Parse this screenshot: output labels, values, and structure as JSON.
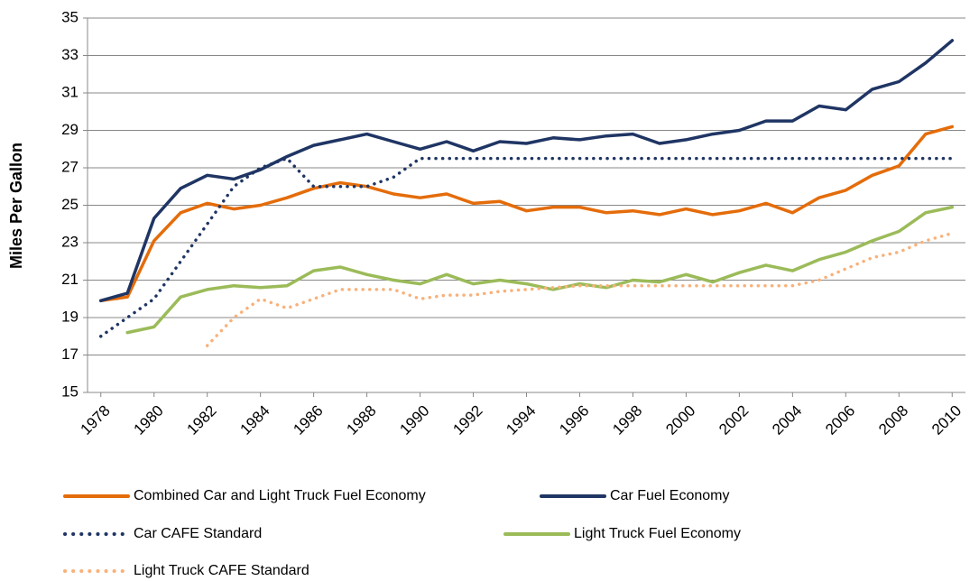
{
  "chart_data": {
    "type": "line",
    "y_label": "Miles Per Gallon",
    "x": [
      1978,
      1979,
      1980,
      1981,
      1982,
      1983,
      1984,
      1985,
      1986,
      1987,
      1988,
      1989,
      1990,
      1991,
      1992,
      1993,
      1994,
      1995,
      1996,
      1997,
      1998,
      1999,
      2000,
      2001,
      2002,
      2003,
      2004,
      2005,
      2006,
      2007,
      2008,
      2009,
      2010
    ],
    "xlim": [
      1977.5,
      2010.5
    ],
    "xticks": [
      1978,
      1980,
      1982,
      1984,
      1986,
      1988,
      1990,
      1992,
      1994,
      1996,
      1998,
      2000,
      2002,
      2004,
      2006,
      2008,
      2010
    ],
    "ylim": [
      15,
      35
    ],
    "yticks": [
      15,
      17,
      19,
      21,
      23,
      25,
      27,
      29,
      31,
      33,
      35
    ],
    "grid": true,
    "legend": "bottom",
    "series": [
      {
        "name": "Combined Car and Light Truck Fuel Economy",
        "color": "#e46c0a",
        "line_style": "solid",
        "values": [
          19.9,
          20.1,
          23.1,
          24.6,
          25.1,
          24.8,
          25.0,
          25.4,
          25.9,
          26.2,
          26.0,
          25.6,
          25.4,
          25.6,
          25.1,
          25.2,
          24.7,
          24.9,
          24.9,
          24.6,
          24.7,
          24.5,
          24.8,
          24.5,
          24.7,
          25.1,
          24.6,
          25.4,
          25.8,
          26.6,
          27.1,
          28.8,
          29.2
        ]
      },
      {
        "name": "Car Fuel Economy",
        "color": "#1f3564",
        "line_style": "solid",
        "values": [
          19.9,
          20.3,
          24.3,
          25.9,
          26.6,
          26.4,
          26.9,
          27.6,
          28.2,
          28.5,
          28.8,
          28.4,
          28.0,
          28.4,
          27.9,
          28.4,
          28.3,
          28.6,
          28.5,
          28.7,
          28.8,
          28.3,
          28.5,
          28.8,
          29.0,
          29.5,
          29.5,
          30.3,
          30.1,
          31.2,
          31.6,
          32.6,
          33.8
        ]
      },
      {
        "name": "Car CAFE Standard",
        "color": "#1f3564",
        "line_style": "dotted",
        "values": [
          18.0,
          19.0,
          20.0,
          22.0,
          24.0,
          26.0,
          27.0,
          27.5,
          26.0,
          26.0,
          26.0,
          26.5,
          27.5,
          27.5,
          27.5,
          27.5,
          27.5,
          27.5,
          27.5,
          27.5,
          27.5,
          27.5,
          27.5,
          27.5,
          27.5,
          27.5,
          27.5,
          27.5,
          27.5,
          27.5,
          27.5,
          27.5,
          27.5
        ]
      },
      {
        "name": "Light Truck Fuel Economy",
        "color": "#9bbb59",
        "line_style": "solid",
        "values": [
          null,
          18.2,
          18.5,
          20.1,
          20.5,
          20.7,
          20.6,
          20.7,
          21.5,
          21.7,
          21.3,
          21.0,
          20.8,
          21.3,
          20.8,
          21.0,
          20.8,
          20.5,
          20.8,
          20.6,
          21.0,
          20.9,
          21.3,
          20.9,
          21.4,
          21.8,
          21.5,
          22.1,
          22.5,
          23.1,
          23.6,
          24.6,
          24.9
        ]
      },
      {
        "name": "Light Truck CAFE Standard",
        "color": "#f9b17a",
        "line_style": "dotted",
        "values": [
          null,
          null,
          null,
          null,
          17.5,
          19.0,
          20.0,
          19.5,
          20.0,
          20.5,
          20.5,
          20.5,
          20.0,
          20.2,
          20.2,
          20.4,
          20.5,
          20.6,
          20.7,
          20.7,
          20.7,
          20.7,
          20.7,
          20.7,
          20.7,
          20.7,
          20.7,
          21.0,
          21.6,
          22.2,
          22.5,
          23.1,
          23.5
        ]
      }
    ]
  }
}
